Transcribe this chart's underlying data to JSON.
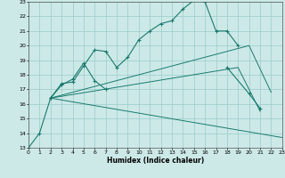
{
  "xlabel": "Humidex (Indice chaleur)",
  "bg_color": "#cce9e7",
  "grid_color": "#99ccc9",
  "line_color": "#1a7a6e",
  "xlim": [
    0,
    23
  ],
  "ylim": [
    13,
    23
  ],
  "xticks": [
    0,
    1,
    2,
    3,
    4,
    5,
    6,
    7,
    8,
    9,
    10,
    11,
    12,
    13,
    14,
    15,
    16,
    17,
    18,
    19,
    20,
    21,
    22,
    23
  ],
  "yticks": [
    13,
    14,
    15,
    16,
    17,
    18,
    19,
    20,
    21,
    22,
    23
  ],
  "lines": [
    {
      "x": [
        0,
        1,
        2,
        3,
        4,
        5,
        6,
        7,
        8,
        9,
        10,
        11,
        12,
        13,
        14,
        15,
        16,
        17,
        18,
        19,
        20
      ],
      "y": [
        13,
        14,
        16.4,
        17.4,
        17.5,
        18.6,
        19.7,
        19.6,
        18.5,
        19.2,
        20.4,
        21.0,
        21.5,
        21.7,
        22.5,
        23.1,
        23.0,
        21.0,
        21.0,
        20.0,
        null
      ],
      "marker": true
    },
    {
      "x": [
        2,
        3,
        4,
        5,
        6,
        7,
        18,
        20,
        21
      ],
      "y": [
        16.4,
        17.3,
        17.7,
        18.8,
        17.6,
        17.0,
        18.5,
        16.7,
        15.7
      ],
      "marker": true
    },
    {
      "x": [
        2,
        23
      ],
      "y": [
        16.4,
        13.7
      ],
      "marker": false
    },
    {
      "x": [
        2,
        20,
        22
      ],
      "y": [
        16.4,
        20.0,
        16.8
      ],
      "marker": false
    },
    {
      "x": [
        2,
        19,
        21
      ],
      "y": [
        16.4,
        18.5,
        15.5
      ],
      "marker": false
    }
  ]
}
